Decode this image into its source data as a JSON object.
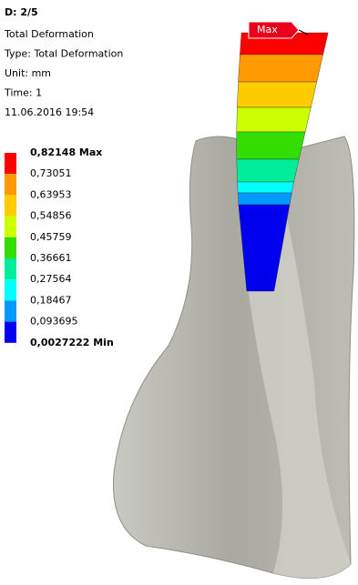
{
  "header": {
    "title": "D: 2/5",
    "lines": [
      "Total Deformation",
      "Type: Total Deformation",
      "Unit: mm",
      "Time: 1",
      "11.06.2016 19:54"
    ]
  },
  "legend": {
    "labels": [
      "0,82148 Max",
      "0,73051",
      "0,63953",
      "0,54856",
      "0,45759",
      "0,36661",
      "0,27564",
      "0,18467",
      "0,093695",
      "0,0027222 Min"
    ],
    "colors": [
      "#ff0000",
      "#ff9900",
      "#ffcc00",
      "#ccff00",
      "#33dd00",
      "#00ee99",
      "#00ffff",
      "#0099ff",
      "#0000ee"
    ]
  },
  "probe": {
    "label": "Max"
  }
}
